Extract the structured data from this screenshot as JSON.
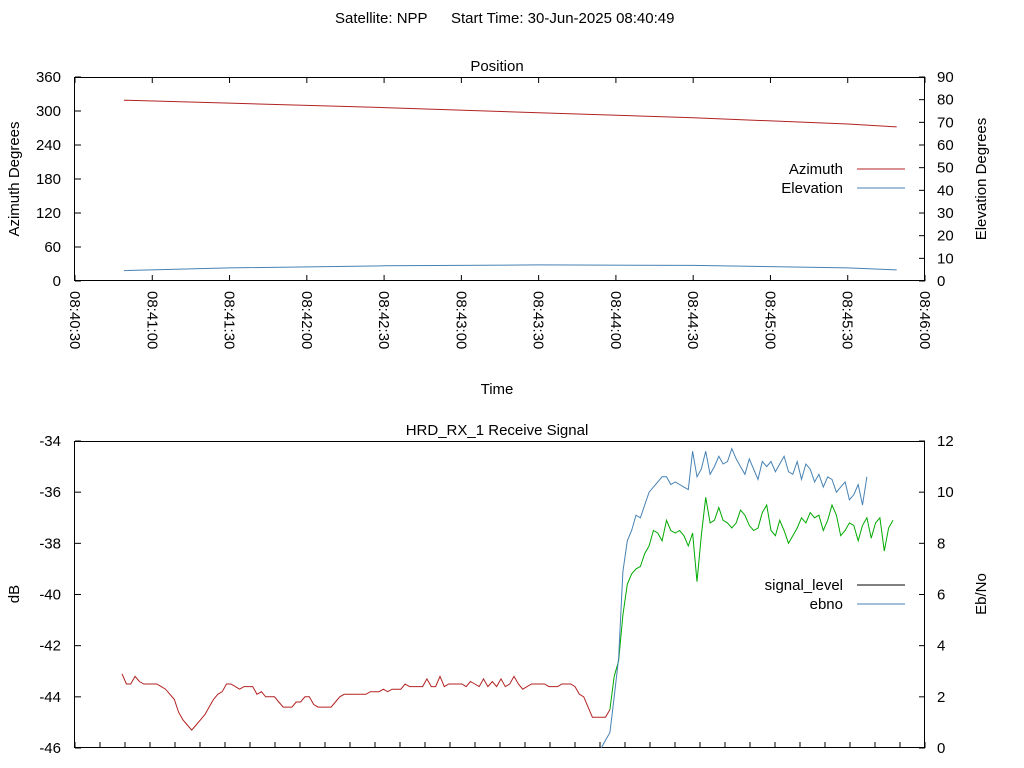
{
  "header": {
    "satellite": "Satellite: NPP",
    "start_time": "Start Time: 30-Jun-2025 08:40:49"
  },
  "chart_data": [
    {
      "type": "line",
      "title": "Position",
      "xlabel": "Time",
      "ylabel": "Azimuth Degrees",
      "y2label": "Elevation Degrees",
      "x_ticks": [
        "08:40:30",
        "08:41:00",
        "08:41:30",
        "08:42:00",
        "08:42:30",
        "08:43:00",
        "08:43:30",
        "08:44:00",
        "08:44:30",
        "08:45:00",
        "08:45:30",
        "08:46:00"
      ],
      "x_range_sec": [
        0,
        330
      ],
      "ylim": [
        0,
        360
      ],
      "y_ticks": [
        "0",
        "60",
        "120",
        "180",
        "240",
        "300",
        "360"
      ],
      "y2lim": [
        0,
        90
      ],
      "y2_ticks": [
        "0",
        "10",
        "20",
        "30",
        "40",
        "50",
        "60",
        "70",
        "80",
        "90"
      ],
      "legend_position": "right",
      "series": [
        {
          "name": "Azimuth",
          "axis": "y",
          "color": "#b22222",
          "x": [
            19,
            60,
            120,
            180,
            240,
            300,
            319
          ],
          "values": [
            319,
            314,
            306,
            297,
            288,
            277,
            272
          ]
        },
        {
          "name": "Elevation",
          "axis": "y2",
          "color": "#4682b4",
          "x": [
            19,
            60,
            120,
            180,
            240,
            300,
            319
          ],
          "values": [
            4.6,
            5.8,
            6.7,
            7.1,
            6.9,
            5.8,
            4.9
          ]
        }
      ]
    },
    {
      "type": "line",
      "title": "HRD_RX_1 Receive Signal",
      "xlabel": "",
      "ylabel": "dB",
      "y2label": "Eb/No",
      "ylim": [
        -46,
        -34
      ],
      "y_ticks": [
        "-46",
        "-44",
        "-42",
        "-40",
        "-38",
        "-36",
        "-34"
      ],
      "y2lim": [
        0,
        12
      ],
      "y2_ticks": [
        "0",
        "2",
        "4",
        "6",
        "8",
        "10",
        "12"
      ],
      "legend_position": "right",
      "legend": [
        {
          "name": "signal_level",
          "color": "#000000"
        },
        {
          "name": "ebno",
          "color": "#4682b4"
        }
      ],
      "series": [
        {
          "name": "signal_level",
          "axis": "y",
          "values": [
            -43.1,
            -43.5,
            -43.5,
            -43.2,
            -43.4,
            -43.5,
            -43.5,
            -43.5,
            -43.5,
            -43.6,
            -43.7,
            -43.9,
            -44.1,
            -44.6,
            -44.9,
            -45.1,
            -45.3,
            -45.1,
            -44.9,
            -44.7,
            -44.4,
            -44.1,
            -43.9,
            -43.8,
            -43.5,
            -43.5,
            -43.6,
            -43.7,
            -43.6,
            -43.6,
            -43.6,
            -43.9,
            -43.8,
            -44.0,
            -44.0,
            -44.0,
            -44.2,
            -44.4,
            -44.4,
            -44.4,
            -44.2,
            -44.2,
            -44.0,
            -44.0,
            -44.3,
            -44.4,
            -44.4,
            -44.4,
            -44.4,
            -44.2,
            -44.0,
            -43.9,
            -43.9,
            -43.9,
            -43.9,
            -43.9,
            -43.9,
            -43.8,
            -43.8,
            -43.8,
            -43.7,
            -43.8,
            -43.7,
            -43.7,
            -43.7,
            -43.5,
            -43.6,
            -43.6,
            -43.6,
            -43.6,
            -43.3,
            -43.6,
            -43.6,
            -43.2,
            -43.6,
            -43.5,
            -43.5,
            -43.5,
            -43.5,
            -43.6,
            -43.4,
            -43.5,
            -43.6,
            -43.3,
            -43.6,
            -43.4,
            -43.6,
            -43.3,
            -43.6,
            -43.5,
            -43.2,
            -43.5,
            -43.7,
            -43.6,
            -43.5,
            -43.5,
            -43.5,
            -43.5,
            -43.6,
            -43.6,
            -43.6,
            -43.5,
            -43.5,
            -43.5,
            -43.6,
            -43.9,
            -44.0,
            -44.4,
            -44.8,
            -44.8,
            -44.8,
            -44.8,
            -44.5,
            -43.2,
            -42.6,
            -40.8,
            -39.6,
            -39.2,
            -39.0,
            -38.9,
            -38.4,
            -38.1,
            -37.5,
            -37.6,
            -37.9,
            -37.1,
            -37.5,
            -37.6,
            -37.5,
            -37.7,
            -38.1,
            -37.6,
            -39.5,
            -37.7,
            -36.2,
            -37.2,
            -37.1,
            -36.6,
            -37.1,
            -37.2,
            -37.4,
            -37.2,
            -36.7,
            -36.9,
            -37.3,
            -37.5,
            -37.4,
            -36.8,
            -36.5,
            -37.5,
            -37.7,
            -37.1,
            -37.5,
            -38.0,
            -37.7,
            -37.4,
            -37.0,
            -37.2,
            -36.8,
            -37.0,
            -36.9,
            -37.5,
            -37.1,
            -36.5,
            -36.9,
            -37.7,
            -37.5,
            -37.2,
            -37.3,
            -37.9,
            -37.3,
            -37.0,
            -37.8,
            -37.2,
            -37.0,
            -38.3,
            -37.4,
            -37.1
          ]
        },
        {
          "name": "ebno",
          "axis": "y2",
          "values": [
            null,
            null,
            null,
            null,
            null,
            null,
            null,
            null,
            null,
            null,
            null,
            null,
            null,
            null,
            null,
            null,
            null,
            null,
            null,
            null,
            null,
            null,
            null,
            null,
            null,
            null,
            null,
            null,
            null,
            null,
            null,
            null,
            null,
            null,
            null,
            null,
            null,
            null,
            null,
            null,
            null,
            null,
            null,
            null,
            null,
            null,
            null,
            null,
            null,
            null,
            null,
            null,
            null,
            null,
            null,
            null,
            null,
            null,
            null,
            null,
            null,
            null,
            null,
            null,
            null,
            null,
            null,
            null,
            null,
            null,
            null,
            null,
            null,
            null,
            null,
            null,
            null,
            null,
            null,
            null,
            null,
            null,
            null,
            null,
            null,
            null,
            null,
            null,
            null,
            null,
            null,
            null,
            null,
            null,
            null,
            null,
            null,
            null,
            null,
            null,
            null,
            null,
            null,
            null,
            null,
            null,
            null,
            null,
            null,
            null,
            0.0,
            0.3,
            0.6,
            2.0,
            3.5,
            6.9,
            8.1,
            8.5,
            9.1,
            9.0,
            9.5,
            10.0,
            10.2,
            10.4,
            10.6,
            10.6,
            10.3,
            10.4,
            10.3,
            10.2,
            10.1,
            11.6,
            10.6,
            10.9,
            11.6,
            10.7,
            11.0,
            11.4,
            11.1,
            11.2,
            11.7,
            11.3,
            11.0,
            10.7,
            11.3,
            10.9,
            10.5,
            11.2,
            11.0,
            11.2,
            10.8,
            11.1,
            11.4,
            10.8,
            10.7,
            11.2,
            10.5,
            11.1,
            10.9,
            10.4,
            10.7,
            10.2,
            10.6,
            10.5,
            10.0,
            10.2,
            10.4,
            9.7,
            9.9,
            10.3,
            9.5,
            10.6
          ]
        }
      ]
    }
  ]
}
